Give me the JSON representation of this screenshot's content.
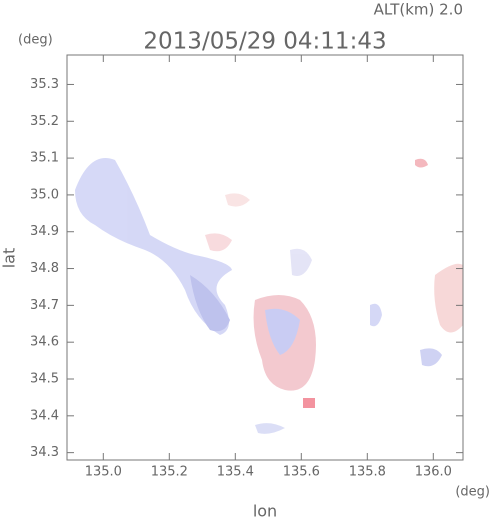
{
  "chart_data": {
    "type": "map",
    "title": "2013/05/29 04:11:43",
    "annotation": "ALT(km) 2.0",
    "xlabel": "lon",
    "xunit": "(deg)",
    "ylabel": "lat",
    "yunit": "(deg)",
    "xlim": [
      134.89,
      136.09
    ],
    "xticks": [
      {
        "value": 135.0,
        "label": "135.0"
      },
      135.2,
      135.4,
      135.6,
      135.8,
      {
        "value": 136.0,
        "label": "136.0"
      }
    ],
    "ylim": [
      34.28,
      35.38
    ],
    "yticks": [
      34.3,
      34.4,
      34.5,
      34.6,
      34.7,
      34.8,
      34.9,
      {
        "value": 35.0,
        "label": "35.0"
      },
      35.1,
      35.2,
      35.3
    ]
  }
}
